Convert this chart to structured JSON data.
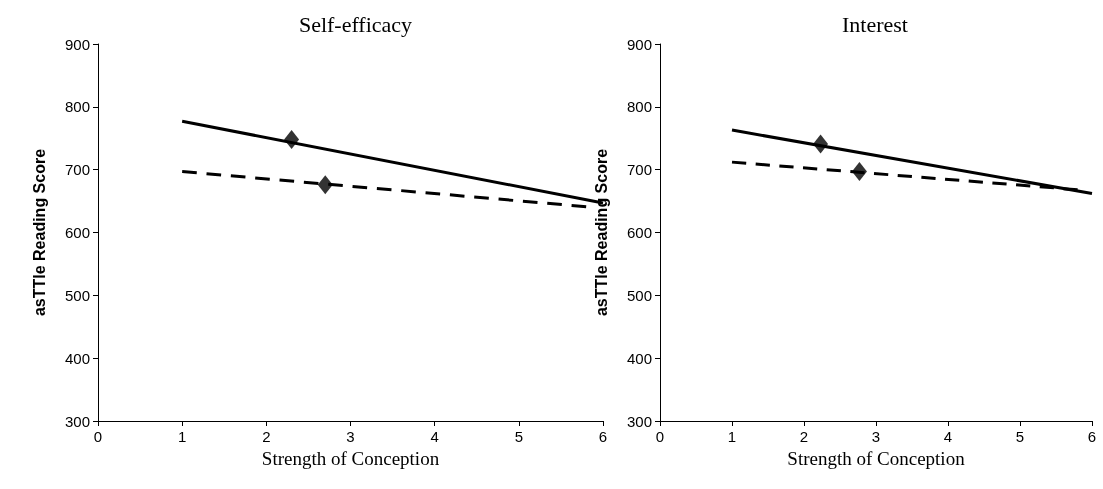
{
  "chart_data": [
    {
      "type": "line",
      "title": "Self-efficacy",
      "xlabel": "Strength of Conception",
      "ylabel": "asTTle Reading Score",
      "xlim": [
        0,
        6
      ],
      "xticks": [
        0,
        1,
        2,
        3,
        4,
        5,
        6
      ],
      "ylim": [
        300,
        900
      ],
      "yticks": [
        300,
        400,
        500,
        600,
        700,
        800,
        900
      ],
      "grid": false,
      "series": [
        {
          "color": "#000000",
          "line_style": "solid",
          "marker": "none",
          "x": [
            1,
            6
          ],
          "values": [
            777,
            647
          ]
        },
        {
          "color": "#000000",
          "line_style": "dashed",
          "marker": "none",
          "x": [
            1,
            5.8
          ],
          "values": [
            697,
            641
          ]
        },
        {
          "type": "scatter",
          "color": "#000000",
          "marker": "diamond",
          "x": [
            2.3
          ],
          "values": [
            748
          ]
        },
        {
          "type": "scatter",
          "color": "#000000",
          "marker": "diamond",
          "x": [
            2.7
          ],
          "values": [
            676
          ]
        }
      ]
    },
    {
      "type": "line",
      "title": "Interest",
      "xlabel": "Strength of Conception",
      "ylabel": "asTTle Reading Score",
      "xlim": [
        0,
        6
      ],
      "xticks": [
        0,
        1,
        2,
        3,
        4,
        5,
        6
      ],
      "ylim": [
        300,
        900
      ],
      "yticks": [
        300,
        400,
        500,
        600,
        700,
        800,
        900
      ],
      "grid": false,
      "series": [
        {
          "color": "#000000",
          "line_style": "solid",
          "marker": "none",
          "x": [
            1,
            6
          ],
          "values": [
            763,
            662
          ]
        },
        {
          "color": "#000000",
          "line_style": "dashed",
          "marker": "none",
          "x": [
            1,
            5.8
          ],
          "values": [
            712,
            668
          ]
        },
        {
          "type": "scatter",
          "color": "#000000",
          "marker": "diamond",
          "x": [
            2.23
          ],
          "values": [
            741
          ]
        },
        {
          "type": "scatter",
          "color": "#000000",
          "marker": "diamond",
          "x": [
            2.77
          ],
          "values": [
            697
          ]
        }
      ]
    }
  ]
}
